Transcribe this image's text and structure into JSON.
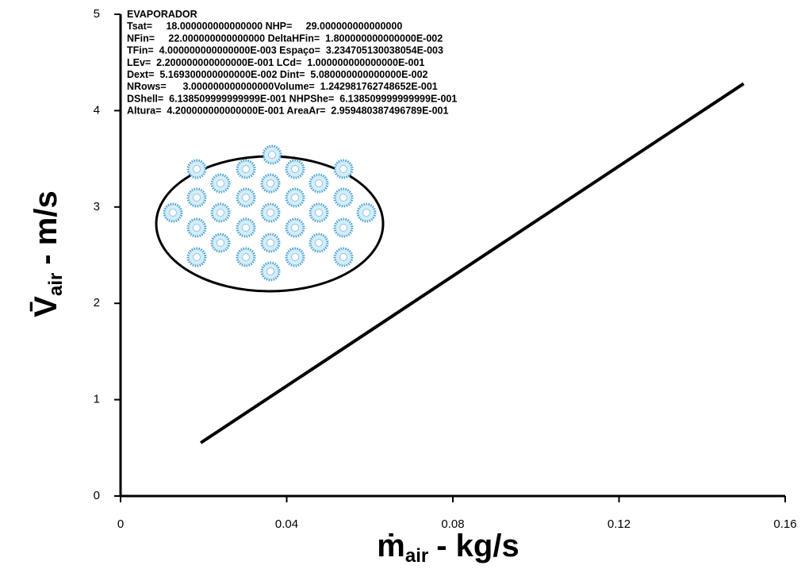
{
  "chart_data": {
    "type": "line",
    "xlabel_parts": [
      "ṁ",
      "air",
      "- kg/s"
    ],
    "ylabel_parts": [
      "V̄",
      "air",
      "- m/s"
    ],
    "annotation_lines": [
      "EVAPORADOR",
      "Tsat=     18.000000000000000 NHP=     29.000000000000000",
      "NFin=     22.000000000000000 DeltaHFin=  1.800000000000000E-002",
      "TFin=  4.000000000000000E-003 Espaço=  3.234705130038054E-003",
      "LEv=  2.200000000000000E-001 LCd=  1.000000000000000E-001",
      "Dext=  5.169300000000000E-002 Dint=  5.080000000000000E-002",
      "NRows=      3.000000000000000Volume=  1.242981762748652E-001",
      "DShell=  6.138509999999999E-001 NHPShe=  6.138509999999999E-001",
      "Altura=  4.200000000000000E-001 AreaAr=  2.959480387496789E-001"
    ],
    "x": [
      0.0193,
      0.15
    ],
    "series": [
      {
        "color": "#000000",
        "values": [
          0.552,
          4.28
        ]
      }
    ],
    "xlim": [
      0,
      0.16
    ],
    "xticks": [
      0,
      0.04,
      0.08,
      0.12,
      0.16
    ],
    "ylim": [
      0,
      5
    ],
    "yticks": [
      0,
      1,
      2,
      3,
      4,
      5
    ],
    "grid": false
  }
}
